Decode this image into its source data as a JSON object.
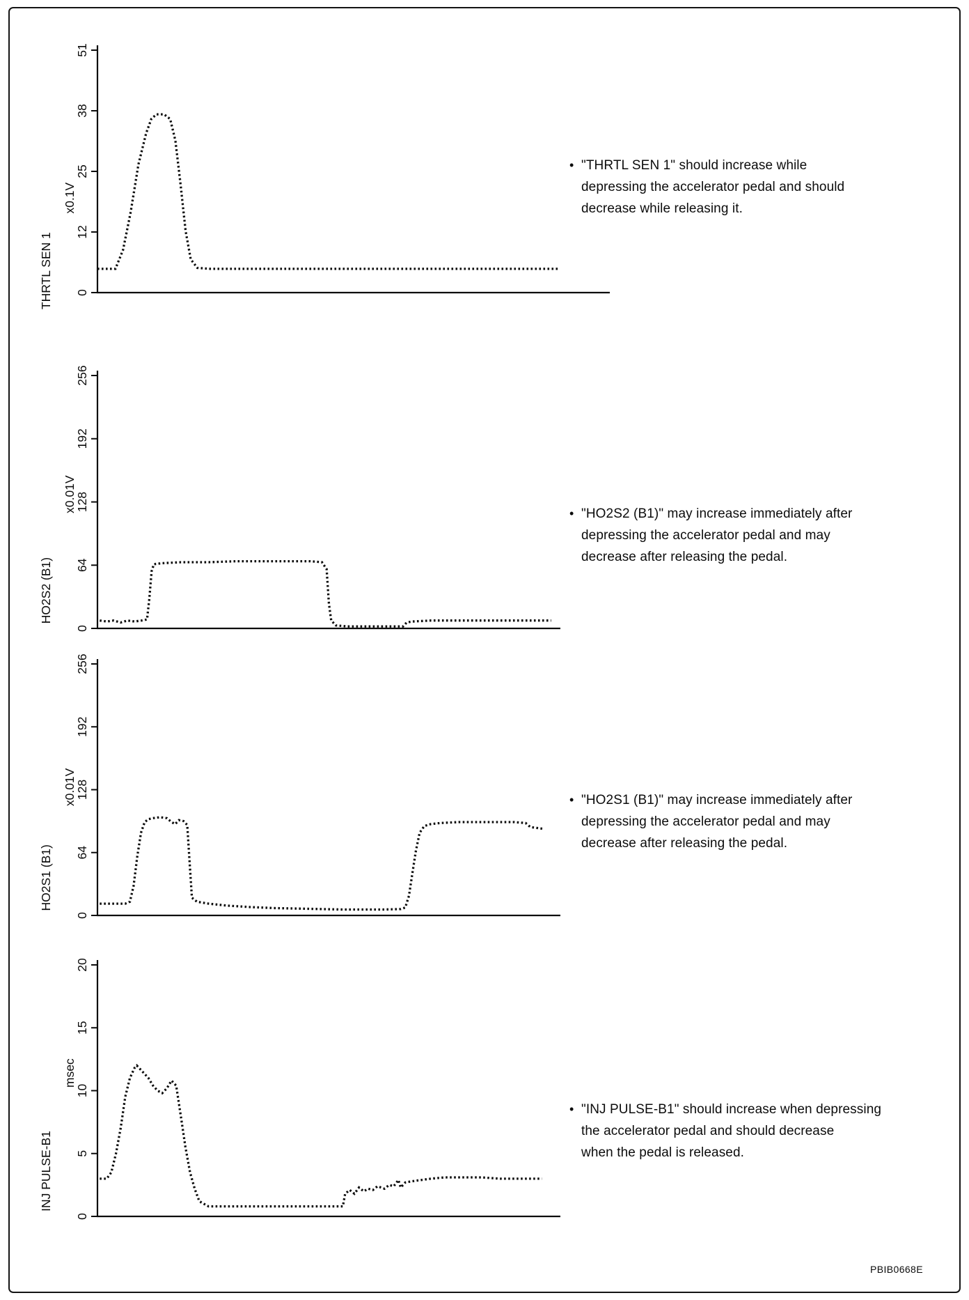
{
  "figure": {
    "code": "PBIB0668E"
  },
  "chart_data": [
    {
      "type": "line",
      "style": "dotted",
      "param": "THRTL SEN 1",
      "unit": "x0.1V",
      "yticks": [
        0,
        12,
        25,
        38,
        51
      ],
      "ylim": [
        0,
        51
      ],
      "points": [
        [
          0,
          5
        ],
        [
          2,
          5
        ],
        [
          3.5,
          5
        ],
        [
          5,
          9
        ],
        [
          6.5,
          17
        ],
        [
          8,
          27
        ],
        [
          9.5,
          33.5
        ],
        [
          10.5,
          36.5
        ],
        [
          11.5,
          37.5
        ],
        [
          13,
          37.5
        ],
        [
          14.2,
          36.5
        ],
        [
          15.2,
          32
        ],
        [
          16.2,
          23
        ],
        [
          17.2,
          13
        ],
        [
          18.2,
          7
        ],
        [
          19.5,
          5.2
        ],
        [
          22,
          5
        ],
        [
          30,
          5
        ],
        [
          40,
          5
        ],
        [
          50,
          5
        ],
        [
          60,
          5
        ],
        [
          70,
          5
        ],
        [
          80,
          5
        ],
        [
          90,
          5
        ]
      ],
      "annotation": {
        "bullet": "•",
        "lines": [
          "\"THRTL SEN 1\" should increase while",
          "depressing the accelerator pedal and should",
          "decrease while releasing it."
        ]
      }
    },
    {
      "type": "line",
      "style": "dotted",
      "param": "HO2S2 (B1)",
      "unit": "x0.01V",
      "yticks": [
        0,
        64,
        128,
        192,
        256
      ],
      "ylim": [
        0,
        256
      ],
      "points": [
        [
          0.5,
          8
        ],
        [
          2,
          7
        ],
        [
          3.5,
          8
        ],
        [
          5,
          6
        ],
        [
          6.5,
          8
        ],
        [
          8,
          7
        ],
        [
          9.5,
          8
        ],
        [
          10.7,
          9
        ],
        [
          11.2,
          30
        ],
        [
          11.7,
          58
        ],
        [
          12.2,
          65
        ],
        [
          14,
          66
        ],
        [
          18,
          67
        ],
        [
          24,
          67
        ],
        [
          30,
          68
        ],
        [
          36,
          68
        ],
        [
          42,
          68
        ],
        [
          46,
          68
        ],
        [
          48.5,
          67
        ],
        [
          49.5,
          60
        ],
        [
          50,
          25
        ],
        [
          50.5,
          8
        ],
        [
          51.5,
          3
        ],
        [
          54,
          2
        ],
        [
          58,
          2
        ],
        [
          62,
          2
        ],
        [
          66,
          2
        ],
        [
          66.8,
          6
        ],
        [
          68,
          7
        ],
        [
          72,
          8
        ],
        [
          78,
          8
        ],
        [
          84,
          8
        ],
        [
          90,
          8
        ],
        [
          96,
          8
        ],
        [
          98,
          8
        ]
      ],
      "annotation": {
        "bullet": "•",
        "lines": [
          "\"HO2S2 (B1)\" may increase immediately after",
          "depressing the accelerator pedal and may",
          "decrease after releasing the pedal."
        ]
      }
    },
    {
      "type": "line",
      "style": "dotted",
      "param": "HO2S1 (B1)",
      "unit": "x0.01V",
      "yticks": [
        0,
        64,
        128,
        192,
        256
      ],
      "ylim": [
        0,
        256
      ],
      "points": [
        [
          0.5,
          12
        ],
        [
          3,
          12
        ],
        [
          6,
          12
        ],
        [
          7,
          14
        ],
        [
          7.8,
          30
        ],
        [
          8.6,
          60
        ],
        [
          9.4,
          84
        ],
        [
          10.2,
          95
        ],
        [
          11,
          98
        ],
        [
          12,
          99
        ],
        [
          13.5,
          100
        ],
        [
          15,
          99
        ],
        [
          16,
          95
        ],
        [
          16.8,
          93
        ],
        [
          17.6,
          97
        ],
        [
          18.6,
          96
        ],
        [
          19.4,
          92
        ],
        [
          19.9,
          55
        ],
        [
          20.4,
          18
        ],
        [
          21.5,
          14
        ],
        [
          24,
          12
        ],
        [
          28,
          10
        ],
        [
          33,
          8.5
        ],
        [
          38,
          7.5
        ],
        [
          43,
          7
        ],
        [
          48,
          6.5
        ],
        [
          53,
          6
        ],
        [
          58,
          6
        ],
        [
          62,
          6
        ],
        [
          65.5,
          6.5
        ],
        [
          66.5,
          8
        ],
        [
          67.3,
          20
        ],
        [
          68,
          42
        ],
        [
          68.8,
          66
        ],
        [
          69.6,
          84
        ],
        [
          70.6,
          91
        ],
        [
          72,
          93
        ],
        [
          74,
          94
        ],
        [
          78,
          95
        ],
        [
          82,
          95
        ],
        [
          86,
          95
        ],
        [
          90,
          95
        ],
        [
          92.5,
          94
        ],
        [
          93.5,
          90
        ],
        [
          95,
          89
        ],
        [
          96.5,
          88
        ]
      ],
      "annotation": {
        "bullet": "•",
        "lines": [
          "\"HO2S1 (B1)\" may increase immediately after",
          "depressing the accelerator pedal and may",
          "decrease after releasing the pedal."
        ]
      }
    },
    {
      "type": "line",
      "style": "dotted",
      "param": "INJ PULSE-B1",
      "unit": "msec",
      "yticks": [
        0,
        5,
        10,
        15,
        20
      ],
      "ylim": [
        0,
        20
      ],
      "points": [
        [
          0.5,
          3
        ],
        [
          2,
          3
        ],
        [
          3,
          3.5
        ],
        [
          4,
          5
        ],
        [
          5,
          7
        ],
        [
          6,
          9.5
        ],
        [
          7,
          11
        ],
        [
          8,
          11.8
        ],
        [
          8.5,
          12
        ],
        [
          9.5,
          11.6
        ],
        [
          11,
          11
        ],
        [
          12,
          10.4
        ],
        [
          13,
          10
        ],
        [
          14,
          9.8
        ],
        [
          15,
          10.2
        ],
        [
          16,
          10.8
        ],
        [
          17,
          10.4
        ],
        [
          18,
          8
        ],
        [
          19,
          5.5
        ],
        [
          20,
          3.5
        ],
        [
          21,
          2.2
        ],
        [
          22,
          1.2
        ],
        [
          24,
          0.8
        ],
        [
          30,
          0.8
        ],
        [
          38,
          0.8
        ],
        [
          46,
          0.8
        ],
        [
          53,
          0.8
        ],
        [
          53.5,
          1.8
        ],
        [
          54.5,
          2.1
        ],
        [
          55.5,
          1.8
        ],
        [
          56.5,
          2.3
        ],
        [
          57.5,
          2
        ],
        [
          58.5,
          2.2
        ],
        [
          59.5,
          2.1
        ],
        [
          60.5,
          2.4
        ],
        [
          62,
          2.2
        ],
        [
          63,
          2.5
        ],
        [
          64,
          2.4
        ],
        [
          65,
          2.9
        ],
        [
          65.5,
          2.3
        ],
        [
          66.5,
          2.7
        ],
        [
          68,
          2.8
        ],
        [
          70,
          2.9
        ],
        [
          72,
          3
        ],
        [
          75,
          3.1
        ],
        [
          79,
          3.1
        ],
        [
          83,
          3.1
        ],
        [
          87,
          3
        ],
        [
          91,
          3
        ],
        [
          96,
          3
        ]
      ],
      "annotation": {
        "bullet": "•",
        "lines": [
          "\"INJ PULSE-B1\" should increase when depressing",
          "the accelerator pedal and should decrease",
          "when the pedal is released."
        ]
      }
    }
  ]
}
